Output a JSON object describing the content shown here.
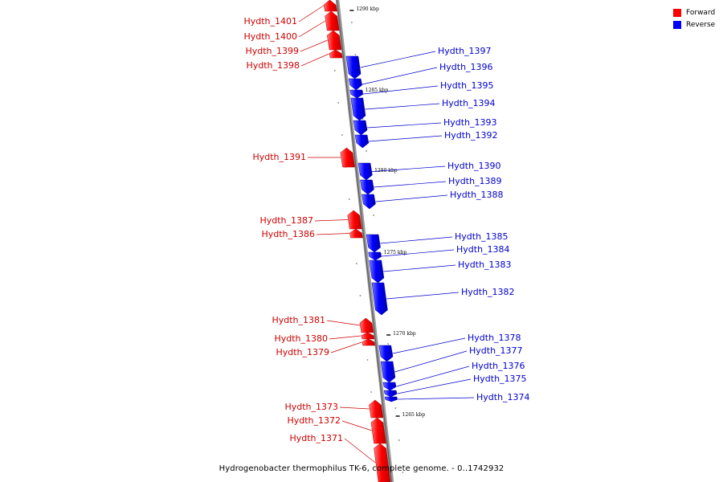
{
  "caption": "Hydrogenobacter thermophilus TK-6, complete genome. - 0..1742932",
  "legend": [
    {
      "label": "Forward",
      "color": "#ff0000"
    },
    {
      "label": "Reverse",
      "color": "#0000ff"
    }
  ],
  "colors": {
    "forward": "#ff0000",
    "forward_label": "#cc0000",
    "reverse": "#0000ff",
    "reverse_label": "#0000cc",
    "axis": "#888888"
  },
  "ticks": [
    {
      "label": "1290 kbp"
    },
    {
      "label": "1285 kbp"
    },
    {
      "label": "1280 kbp"
    },
    {
      "label": "1275 kbp"
    },
    {
      "label": "1270 kbp"
    },
    {
      "label": "1265 kbp"
    }
  ],
  "genes": [
    {
      "name": "Hydth_1401",
      "strand": "forward"
    },
    {
      "name": "Hydth_1400",
      "strand": "forward"
    },
    {
      "name": "Hydth_1399",
      "strand": "forward"
    },
    {
      "name": "Hydth_1398",
      "strand": "forward"
    },
    {
      "name": "Hydth_1397",
      "strand": "reverse"
    },
    {
      "name": "Hydth_1396",
      "strand": "reverse"
    },
    {
      "name": "Hydth_1395",
      "strand": "reverse"
    },
    {
      "name": "Hydth_1394",
      "strand": "reverse"
    },
    {
      "name": "Hydth_1393",
      "strand": "reverse"
    },
    {
      "name": "Hydth_1392",
      "strand": "reverse"
    },
    {
      "name": "Hydth_1391",
      "strand": "forward"
    },
    {
      "name": "Hydth_1390",
      "strand": "reverse"
    },
    {
      "name": "Hydth_1389",
      "strand": "reverse"
    },
    {
      "name": "Hydth_1388",
      "strand": "reverse"
    },
    {
      "name": "Hydth_1387",
      "strand": "forward"
    },
    {
      "name": "Hydth_1386",
      "strand": "forward"
    },
    {
      "name": "Hydth_1385",
      "strand": "reverse"
    },
    {
      "name": "Hydth_1384",
      "strand": "reverse"
    },
    {
      "name": "Hydth_1383",
      "strand": "reverse"
    },
    {
      "name": "Hydth_1382",
      "strand": "reverse"
    },
    {
      "name": "Hydth_1381",
      "strand": "forward"
    },
    {
      "name": "Hydth_1380",
      "strand": "forward"
    },
    {
      "name": "Hydth_1379",
      "strand": "forward"
    },
    {
      "name": "Hydth_1378",
      "strand": "reverse"
    },
    {
      "name": "Hydth_1377",
      "strand": "reverse"
    },
    {
      "name": "Hydth_1376",
      "strand": "reverse"
    },
    {
      "name": "Hydth_1375",
      "strand": "reverse"
    },
    {
      "name": "Hydth_1374",
      "strand": "reverse"
    },
    {
      "name": "Hydth_1373",
      "strand": "forward"
    },
    {
      "name": "Hydth_1372",
      "strand": "forward"
    },
    {
      "name": "Hydth_1371",
      "strand": "forward"
    }
  ]
}
